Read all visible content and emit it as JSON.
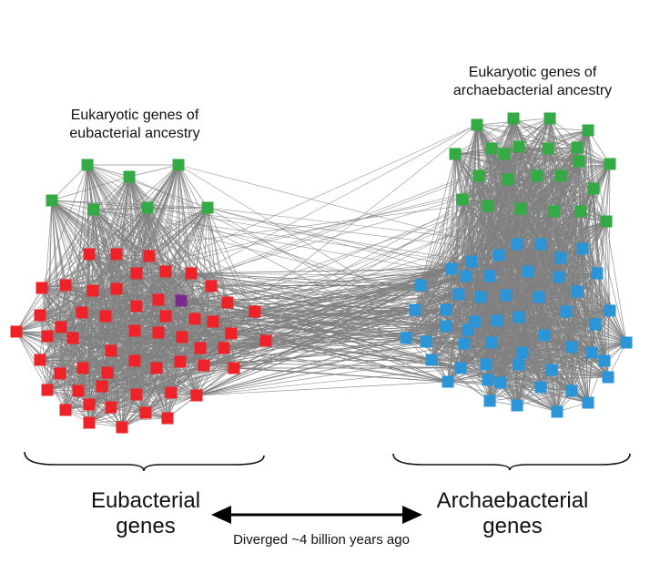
{
  "labels": {
    "euk_eubacterial_line1": "Eukaryotic genes of",
    "euk_eubacterial_line2": "eubacterial ancestry",
    "euk_archaeal_line1": "Eukaryotic genes of",
    "euk_archaeal_line2": "archaebacterial ancestry",
    "eubacterial_line1": "Eubacterial",
    "eubacterial_line2": "genes",
    "archaebacterial_line1": "Archaebacterial",
    "archaebacterial_line2": "genes",
    "diverged": "Diverged ~4 billion years ago"
  },
  "colors": {
    "eubacterial_node": "#ee2229",
    "archaebacterial_node": "#2b95d8",
    "eukaryotic_node": "#33aa44",
    "highlight_node": "#7a2a8a",
    "edge": "#808080",
    "text": "#111111"
  },
  "icons": [
    "left-brace-icon",
    "right-brace-icon",
    "double-arrow-icon"
  ]
}
